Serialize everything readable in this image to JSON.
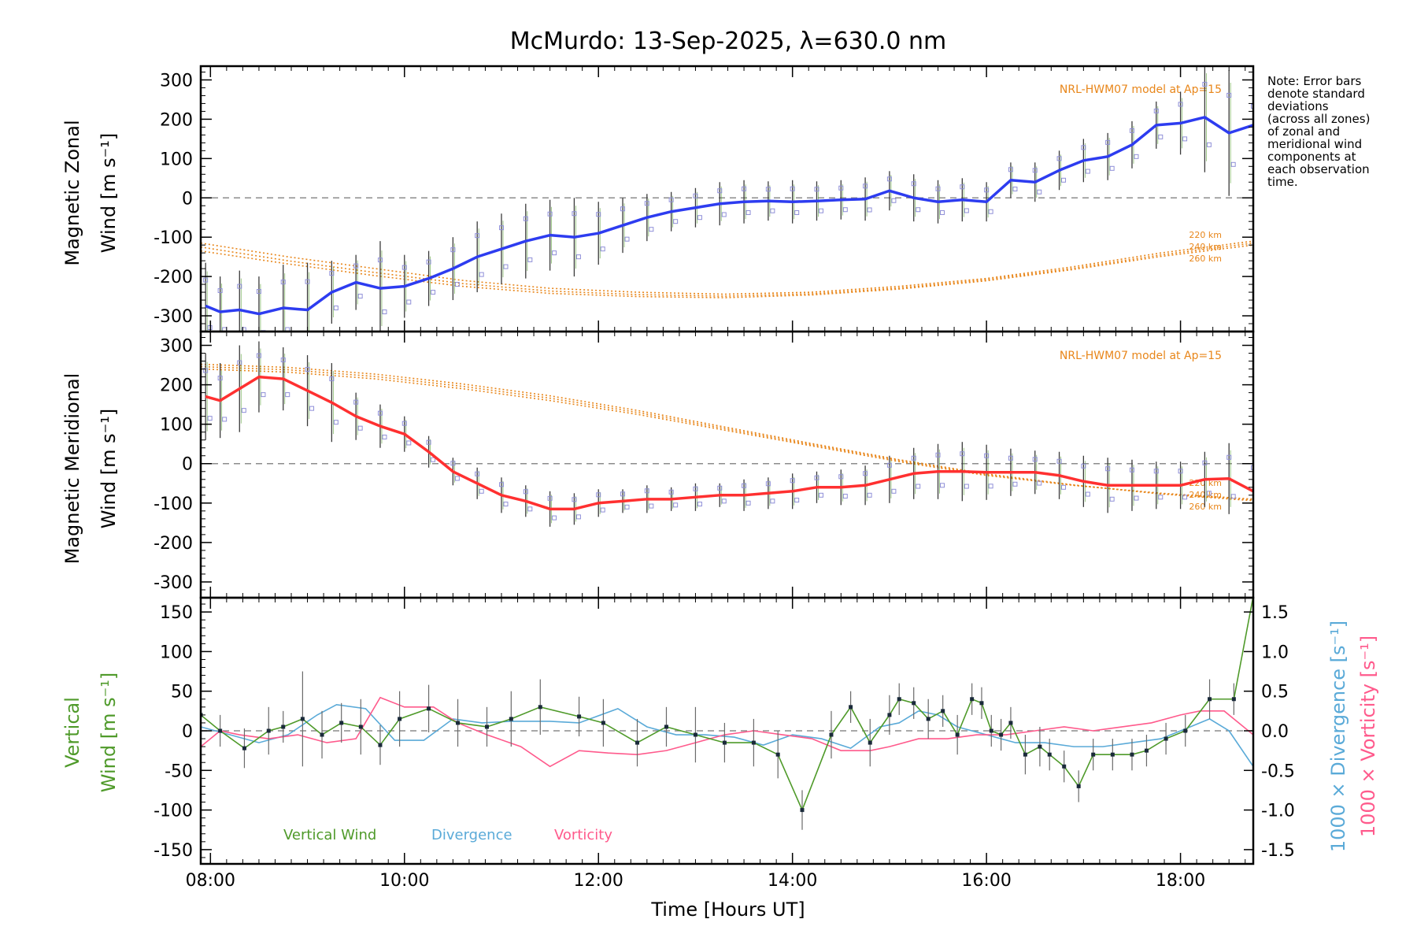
{
  "colors": {
    "zonal": "#2d3cf0",
    "meridional": "#ff3030",
    "vertical": "#4f9a2a",
    "divergence": "#5aaad8",
    "vorticity": "#ff5a8c",
    "model": "#e8861a",
    "samples": "#8f8fd8",
    "errorbar": "#3a3a3a",
    "zero_line": "#8c8c8c"
  },
  "chart_data": {
    "type": "line",
    "title": "McMurdo: 13-Sep-2025, λ=630.0 nm",
    "note_lines": [
      "Note: Error bars",
      "denote standard",
      "deviations",
      "(across all zones)",
      "of zonal and",
      "meridional wind",
      "components at",
      "each observation",
      "time."
    ],
    "xlabel": "Time [Hours UT]",
    "x_ticks": [
      "08:00",
      "10:00",
      "12:00",
      "14:00",
      "16:00",
      "18:00"
    ],
    "x_tick_values": [
      8,
      10,
      12,
      14,
      16,
      18
    ],
    "xlim": [
      7.9,
      18.75
    ],
    "panels": [
      {
        "name": "zonal",
        "ylabel_lines": [
          "Magnetic Zonal",
          "Wind [m s⁻¹]"
        ],
        "ylim": [
          -340,
          335
        ],
        "y_ticks": [
          -300,
          -200,
          -100,
          0,
          100,
          200,
          300
        ],
        "model_label": "NRL-HWM07 model at Ap=15",
        "model_alt_labels": [
          "220 km",
          "240 km",
          "260 km"
        ],
        "series": {
          "x": [
            7.95,
            8.1,
            8.3,
            8.5,
            8.75,
            9.0,
            9.25,
            9.5,
            9.75,
            10.0,
            10.25,
            10.5,
            10.75,
            11.0,
            11.25,
            11.5,
            11.75,
            12.0,
            12.25,
            12.5,
            12.75,
            13.0,
            13.25,
            13.5,
            13.75,
            14.0,
            14.25,
            14.5,
            14.75,
            15.0,
            15.25,
            15.5,
            15.75,
            16.0,
            16.25,
            16.5,
            16.75,
            17.0,
            17.25,
            17.5,
            17.75,
            18.0,
            18.25,
            18.5,
            18.75
          ],
          "values": [
            -275,
            -290,
            -285,
            -295,
            -280,
            -285,
            -240,
            -215,
            -230,
            -225,
            -205,
            -180,
            -150,
            -130,
            -110,
            -95,
            -100,
            -90,
            -70,
            -50,
            -35,
            -25,
            -15,
            -10,
            -8,
            -10,
            -8,
            -5,
            -3,
            18,
            0,
            -10,
            -5,
            -10,
            45,
            40,
            70,
            95,
            105,
            135,
            185,
            190,
            205,
            165,
            185
          ],
          "err": [
            110,
            90,
            100,
            95,
            110,
            120,
            80,
            70,
            120,
            80,
            70,
            80,
            90,
            90,
            95,
            90,
            100,
            80,
            70,
            60,
            50,
            50,
            55,
            55,
            50,
            55,
            50,
            50,
            55,
            50,
            60,
            55,
            55,
            50,
            45,
            50,
            50,
            55,
            60,
            60,
            60,
            80,
            140,
            160,
            80
          ]
        },
        "model_220": [
          -115,
          -150,
          -180,
          -210,
          -230,
          -240,
          -245,
          -240,
          -225,
          -205,
          -175,
          -140,
          -110
        ],
        "model_240": [
          -125,
          -160,
          -190,
          -218,
          -237,
          -246,
          -250,
          -244,
          -229,
          -208,
          -179,
          -145,
          -115
        ],
        "model_260": [
          -135,
          -168,
          -198,
          -225,
          -243,
          -251,
          -254,
          -247,
          -232,
          -211,
          -182,
          -149,
          -120
        ],
        "model_x": [
          7.9,
          8.8,
          9.7,
          10.6,
          11.5,
          12.4,
          13.3,
          14.2,
          15.1,
          16.0,
          16.9,
          17.8,
          18.75
        ]
      },
      {
        "name": "meridional",
        "ylabel_lines": [
          "Magnetic Meridional",
          "Wind [m s⁻¹]"
        ],
        "ylim": [
          -340,
          335
        ],
        "y_ticks": [
          -300,
          -200,
          -100,
          0,
          100,
          200,
          300
        ],
        "model_label": "NRL-HWM07 model at Ap=15",
        "model_alt_labels": [
          "220 km",
          "240 km",
          "260 km"
        ],
        "series": {
          "x": [
            7.95,
            8.1,
            8.3,
            8.5,
            8.75,
            9.0,
            9.25,
            9.5,
            9.75,
            10.0,
            10.25,
            10.5,
            10.75,
            11.0,
            11.25,
            11.5,
            11.75,
            12.0,
            12.25,
            12.5,
            12.75,
            13.0,
            13.25,
            13.5,
            13.75,
            14.0,
            14.25,
            14.5,
            14.75,
            15.0,
            15.25,
            15.5,
            15.75,
            16.0,
            16.25,
            16.5,
            16.75,
            17.0,
            17.25,
            17.5,
            17.75,
            18.0,
            18.25,
            18.5,
            18.75
          ],
          "values": [
            170,
            160,
            190,
            220,
            215,
            185,
            155,
            120,
            95,
            75,
            30,
            -20,
            -50,
            -80,
            -95,
            -115,
            -115,
            -100,
            -95,
            -90,
            -90,
            -85,
            -80,
            -80,
            -75,
            -70,
            -60,
            -60,
            -55,
            -40,
            -25,
            -20,
            -20,
            -22,
            -22,
            -22,
            -30,
            -45,
            -55,
            -55,
            -55,
            -55,
            -40,
            -38,
            -70
          ],
          "err": [
            110,
            95,
            110,
            90,
            80,
            90,
            100,
            60,
            55,
            45,
            40,
            35,
            40,
            45,
            40,
            45,
            40,
            35,
            30,
            35,
            30,
            35,
            30,
            40,
            40,
            45,
            40,
            45,
            50,
            60,
            65,
            70,
            75,
            70,
            60,
            55,
            60,
            65,
            70,
            65,
            60,
            60,
            70,
            90,
            100
          ]
        },
        "model_220": [
          240,
          232,
          215,
          190,
          160,
          125,
          85,
          45,
          5,
          -30,
          -55,
          -75,
          -90
        ],
        "model_240": [
          246,
          238,
          221,
          196,
          166,
          130,
          89,
          48,
          8,
          -28,
          -55,
          -76,
          -92
        ],
        "model_260": [
          252,
          244,
          227,
          202,
          172,
          135,
          93,
          51,
          10,
          -26,
          -54,
          -77,
          -94
        ],
        "model_x": [
          7.9,
          8.8,
          9.7,
          10.6,
          11.5,
          12.4,
          13.3,
          14.2,
          15.1,
          16.0,
          16.9,
          17.8,
          18.75
        ]
      },
      {
        "name": "vertical",
        "ylabel_lines": [
          "Vertical",
          "Wind [m s⁻¹]"
        ],
        "ylim": [
          -168,
          168
        ],
        "y_ticks": [
          -150,
          -100,
          -50,
          0,
          50,
          100,
          150
        ],
        "right_ylim": [
          -1.68,
          1.68
        ],
        "right_y_ticks": [
          -1.5,
          -1.0,
          -0.5,
          0.0,
          0.5,
          1.0,
          1.5
        ],
        "right_labels": [
          "1000 × Divergence [s⁻¹]",
          "1000 × Vorticity [s⁻¹]"
        ],
        "legend": [
          "Vertical Wind",
          "Divergence",
          "Vorticity"
        ],
        "vertical_wind": {
          "x": [
            7.9,
            8.1,
            8.35,
            8.6,
            8.75,
            8.95,
            9.15,
            9.35,
            9.55,
            9.75,
            9.95,
            10.25,
            10.55,
            10.85,
            11.1,
            11.4,
            11.8,
            12.05,
            12.4,
            12.7,
            13.0,
            13.3,
            13.6,
            13.85,
            14.1,
            14.4,
            14.6,
            14.8,
            15.0,
            15.1,
            15.25,
            15.4,
            15.55,
            15.7,
            15.85,
            15.95,
            16.05,
            16.15,
            16.25,
            16.4,
            16.55,
            16.65,
            16.8,
            16.95,
            17.1,
            17.3,
            17.5,
            17.65,
            17.85,
            18.05,
            18.3,
            18.55,
            18.75
          ],
          "values": [
            20,
            0,
            -22,
            0,
            5,
            15,
            -5,
            10,
            5,
            -18,
            15,
            28,
            10,
            5,
            15,
            30,
            18,
            10,
            -15,
            5,
            -5,
            -15,
            -15,
            -30,
            -100,
            -5,
            30,
            -15,
            20,
            40,
            35,
            15,
            25,
            -5,
            40,
            35,
            0,
            -5,
            10,
            -30,
            -20,
            -30,
            -45,
            -70,
            -30,
            -30,
            -30,
            -25,
            -10,
            0,
            40,
            40,
            170
          ],
          "err": [
            30,
            20,
            25,
            30,
            20,
            60,
            30,
            25,
            35,
            25,
            35,
            30,
            30,
            25,
            35,
            35,
            25,
            30,
            30,
            25,
            35,
            25,
            30,
            30,
            25,
            30,
            20,
            30,
            25,
            20,
            20,
            25,
            20,
            25,
            20,
            20,
            20,
            20,
            20,
            25,
            25,
            20,
            20,
            20,
            20,
            20,
            20,
            20,
            20,
            20,
            25,
            20,
            40
          ]
        },
        "divergence": {
          "x": [
            7.9,
            8.2,
            8.5,
            8.8,
            9.1,
            9.3,
            9.6,
            9.9,
            10.2,
            10.5,
            10.8,
            11.1,
            11.5,
            11.8,
            12.2,
            12.5,
            12.8,
            13.1,
            13.4,
            13.7,
            14.0,
            14.3,
            14.6,
            14.9,
            15.1,
            15.3,
            15.5,
            15.7,
            16.0,
            16.3,
            16.6,
            16.9,
            17.2,
            17.5,
            17.8,
            18.1,
            18.3,
            18.5,
            18.75
          ],
          "values": [
            0.05,
            -0.05,
            -0.15,
            -0.05,
            0.2,
            0.33,
            0.28,
            -0.12,
            -0.12,
            0.15,
            0.1,
            0.12,
            0.12,
            0.1,
            0.28,
            0.05,
            -0.05,
            -0.05,
            -0.08,
            -0.18,
            -0.05,
            -0.1,
            -0.22,
            0.05,
            0.1,
            0.25,
            0.2,
            0.05,
            -0.05,
            -0.15,
            -0.15,
            -0.2,
            -0.2,
            -0.15,
            -0.1,
            0.05,
            0.15,
            0.0,
            -0.45
          ],
          "color": "#5aaad8"
        },
        "vorticity": {
          "x": [
            7.9,
            8.1,
            8.3,
            8.6,
            8.9,
            9.2,
            9.5,
            9.75,
            10.0,
            10.3,
            10.55,
            10.85,
            11.2,
            11.5,
            11.8,
            12.1,
            12.4,
            12.7,
            13.0,
            13.3,
            13.6,
            13.9,
            14.2,
            14.5,
            14.8,
            15.0,
            15.3,
            15.6,
            15.9,
            16.2,
            16.5,
            16.8,
            17.1,
            17.4,
            17.7,
            18.0,
            18.2,
            18.45,
            18.75
          ],
          "values": [
            -0.2,
            0.0,
            -0.05,
            -0.1,
            -0.05,
            -0.15,
            -0.1,
            0.42,
            0.3,
            0.3,
            0.1,
            -0.05,
            -0.2,
            -0.45,
            -0.25,
            -0.28,
            -0.3,
            -0.25,
            -0.15,
            -0.05,
            0.0,
            -0.05,
            -0.1,
            -0.25,
            -0.25,
            -0.2,
            -0.1,
            -0.1,
            -0.05,
            -0.05,
            0.0,
            0.05,
            0.0,
            0.05,
            0.1,
            0.2,
            0.25,
            0.25,
            -0.05
          ],
          "color": "#ff5a8c"
        }
      }
    ]
  }
}
